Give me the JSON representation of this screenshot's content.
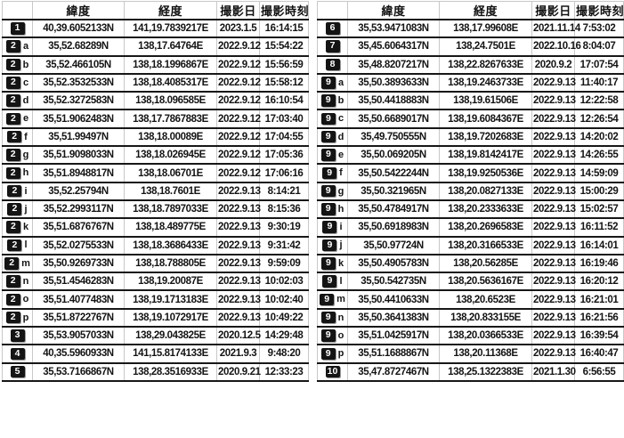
{
  "chart_data": {
    "type": "table",
    "columns": [
      "緯度",
      "経度",
      "撮影日",
      "撮影時刻"
    ],
    "left_rows": [
      {
        "num": "1",
        "letter": "",
        "lat": "40,39.6052133N",
        "lon": "141,19.7839217E",
        "date": "2023.1.5",
        "time": "16:14:15"
      },
      {
        "num": "2",
        "letter": "a",
        "lat": "35,52.68289N",
        "lon": "138,17.64764E",
        "date": "2022.9.12",
        "time": "15:54:22"
      },
      {
        "num": "2",
        "letter": "b",
        "lat": "35,52.466105N",
        "lon": "138,18.1996867E",
        "date": "2022.9.12",
        "time": "15:56:59"
      },
      {
        "num": "2",
        "letter": "c",
        "lat": "35,52.3532533N",
        "lon": "138,18.4085317E",
        "date": "2022.9.12",
        "time": "15:58:12"
      },
      {
        "num": "2",
        "letter": "d",
        "lat": "35,52.3272583N",
        "lon": "138,18.096585E",
        "date": "2022.9.12",
        "time": "16:10:54"
      },
      {
        "num": "2",
        "letter": "e",
        "lat": "35,51.9062483N",
        "lon": "138,17.7867883E",
        "date": "2022.9.12",
        "time": "17:03:40"
      },
      {
        "num": "2",
        "letter": "f",
        "lat": "35,51.99497N",
        "lon": "138,18.00089E",
        "date": "2022.9.12",
        "time": "17:04:55"
      },
      {
        "num": "2",
        "letter": "g",
        "lat": "35,51.9098033N",
        "lon": "138,18.026945E",
        "date": "2022.9.12",
        "time": "17:05:36"
      },
      {
        "num": "2",
        "letter": "h",
        "lat": "35,51.8948817N",
        "lon": "138,18.06701E",
        "date": "2022.9.12",
        "time": "17:06:16"
      },
      {
        "num": "2",
        "letter": "i",
        "lat": "35,52.25794N",
        "lon": "138,18.7601E",
        "date": "2022.9.13",
        "time": "8:14:21"
      },
      {
        "num": "2",
        "letter": "j",
        "lat": "35,52.2993117N",
        "lon": "138,18.7897033E",
        "date": "2022.9.13",
        "time": "8:15:36"
      },
      {
        "num": "2",
        "letter": "k",
        "lat": "35,51.6876767N",
        "lon": "138,18.489775E",
        "date": "2022.9.13",
        "time": "9:30:19"
      },
      {
        "num": "2",
        "letter": "l",
        "lat": "35,52.0275533N",
        "lon": "138,18.3686433E",
        "date": "2022.9.13",
        "time": "9:31:42"
      },
      {
        "num": "2",
        "letter": "m",
        "lat": "35,50.9269733N",
        "lon": "138,18.788805E",
        "date": "2022.9.13",
        "time": "9:59:09"
      },
      {
        "num": "2",
        "letter": "n",
        "lat": "35,51.4546283N",
        "lon": "138,19.20087E",
        "date": "2022.9.13",
        "time": "10:02:03"
      },
      {
        "num": "2",
        "letter": "o",
        "lat": "35,51.4077483N",
        "lon": "138,19.1713183E",
        "date": "2022.9.13",
        "time": "10:02:40"
      },
      {
        "num": "2",
        "letter": "p",
        "lat": "35,51.8722767N",
        "lon": "138,19.1072917E",
        "date": "2022.9.13",
        "time": "10:49:22"
      },
      {
        "num": "3",
        "letter": "",
        "lat": "35,53.9057033N",
        "lon": "138,29.043825E",
        "date": "2020.12.5",
        "time": "14:29:48"
      },
      {
        "num": "4",
        "letter": "",
        "lat": "40,35.5960933N",
        "lon": "141,15.8174133E",
        "date": "2021.9.3",
        "time": "9:48:20"
      },
      {
        "num": "5",
        "letter": "",
        "lat": "35,53.7166867N",
        "lon": "138,28.3516933E",
        "date": "2020.9.21",
        "time": "12:33:23"
      }
    ],
    "right_rows": [
      {
        "num": "6",
        "letter": "",
        "lat": "35,53.9471083N",
        "lon": "138,17.99608E",
        "date": "2021.11.14",
        "time": "7:53:02"
      },
      {
        "num": "7",
        "letter": "",
        "lat": "35,45.6064317N",
        "lon": "138,24.7501E",
        "date": "2022.10.16",
        "time": "8:04:07"
      },
      {
        "num": "8",
        "letter": "",
        "lat": "35,48.8207217N",
        "lon": "138,22.8267633E",
        "date": "2020.9.2",
        "time": "17:07:54"
      },
      {
        "num": "9",
        "letter": "a",
        "lat": "35,50.3893633N",
        "lon": "138,19.2463733E",
        "date": "2022.9.13",
        "time": "11:40:17"
      },
      {
        "num": "9",
        "letter": "b",
        "lat": "35,50.4418883N",
        "lon": "138,19.61506E",
        "date": "2022.9.13",
        "time": "12:22:58"
      },
      {
        "num": "9",
        "letter": "c",
        "lat": "35,50.6689017N",
        "lon": "138,19.6084367E",
        "date": "2022.9.13",
        "time": "12:26:54"
      },
      {
        "num": "9",
        "letter": "d",
        "lat": "35,49.750555N",
        "lon": "138,19.7202683E",
        "date": "2022.9.13",
        "time": "14:20:02"
      },
      {
        "num": "9",
        "letter": "e",
        "lat": "35,50.069205N",
        "lon": "138,19.8142417E",
        "date": "2022.9.13",
        "time": "14:26:55"
      },
      {
        "num": "9",
        "letter": "f",
        "lat": "35,50.5422244N",
        "lon": "138,19.9250536E",
        "date": "2022.9.13",
        "time": "14:59:09"
      },
      {
        "num": "9",
        "letter": "g",
        "lat": "35,50.321965N",
        "lon": "138,20.0827133E",
        "date": "2022.9.13",
        "time": "15:00:29"
      },
      {
        "num": "9",
        "letter": "h",
        "lat": "35,50.4784917N",
        "lon": "138,20.2333633E",
        "date": "2022.9.13",
        "time": "15:02:57"
      },
      {
        "num": "9",
        "letter": "i",
        "lat": "35,50.6918983N",
        "lon": "138,20.2696583E",
        "date": "2022.9.13",
        "time": "16:11:52"
      },
      {
        "num": "9",
        "letter": "j",
        "lat": "35,50.97724N",
        "lon": "138,20.3166533E",
        "date": "2022.9.13",
        "time": "16:14:01"
      },
      {
        "num": "9",
        "letter": "k",
        "lat": "35,50.4905783N",
        "lon": "138,20.56285E",
        "date": "2022.9.13",
        "time": "16:19:46"
      },
      {
        "num": "9",
        "letter": "l",
        "lat": "35,50.542735N",
        "lon": "138,20.5636167E",
        "date": "2022.9.13",
        "time": "16:20:12"
      },
      {
        "num": "9",
        "letter": "m",
        "lat": "35,50.4410633N",
        "lon": "138,20.6523E",
        "date": "2022.9.13",
        "time": "16:21:01"
      },
      {
        "num": "9",
        "letter": "n",
        "lat": "35,50.3641383N",
        "lon": "138,20.833155E",
        "date": "2022.9.13",
        "time": "16:21:56"
      },
      {
        "num": "9",
        "letter": "o",
        "lat": "35,51.0425917N",
        "lon": "138,20.0366533E",
        "date": "2022.9.13",
        "time": "16:39:54"
      },
      {
        "num": "9",
        "letter": "p",
        "lat": "35,51.1688867N",
        "lon": "138,20.11368E",
        "date": "2022.9.13",
        "time": "16:40:47"
      },
      {
        "num": "10",
        "letter": "",
        "lat": "35,47.8727467N",
        "lon": "138,25.1322383E",
        "date": "2021.1.30",
        "time": "6:56:55"
      }
    ]
  }
}
